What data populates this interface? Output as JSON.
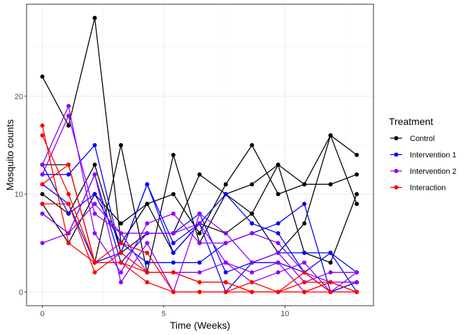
{
  "chart_data": {
    "type": "line",
    "xlabel": "Time (Weeks)",
    "ylabel": "Mosquito counts",
    "xlim": [
      -0.65,
      13.65
    ],
    "ylim": [
      -1.4,
      29.4
    ],
    "x_ticks": [
      0,
      5,
      10
    ],
    "x_tick_labels": [
      "0",
      "5",
      "10"
    ],
    "y_ticks": [
      0,
      10,
      20
    ],
    "y_tick_labels": [
      "0",
      "10",
      "20"
    ],
    "grid": true,
    "legend": {
      "title": "Treatment",
      "position": "right",
      "entries": [
        {
          "label": "Control",
          "color": "#000000"
        },
        {
          "label": "Intervention 1",
          "color": "#0000FF"
        },
        {
          "label": "Intervention 2",
          "color": "#8B00FF"
        },
        {
          "label": "Interaction",
          "color": "#FF0000"
        }
      ]
    },
    "x": [
      0,
      1.08,
      2.16,
      3.24,
      4.32,
      5.4,
      6.48,
      7.56,
      8.64,
      9.72,
      10.8,
      11.88,
      12.96
    ],
    "series": [
      {
        "treatment": "Control",
        "color": "#000000",
        "values": [
          22,
          17,
          28,
          5,
          9,
          10,
          6,
          11,
          15,
          10,
          11,
          16,
          14
        ]
      },
      {
        "treatment": "Control",
        "color": "#000000",
        "values": [
          13,
          13,
          3,
          15,
          2,
          14,
          5,
          10,
          8,
          13,
          11,
          11,
          12
        ]
      },
      {
        "treatment": "Control",
        "color": "#000000",
        "values": [
          10,
          8,
          13,
          4,
          6,
          6,
          12,
          10,
          11,
          13,
          4,
          3,
          10
        ]
      },
      {
        "treatment": "Control",
        "color": "#000000",
        "values": [
          9,
          5,
          10,
          7,
          9,
          4,
          7,
          6,
          8,
          4,
          7,
          16,
          9
        ]
      },
      {
        "treatment": "Intervention 1",
        "color": "#0000FF",
        "values": [
          12,
          12,
          15,
          4,
          11,
          4,
          7,
          10,
          7,
          6,
          2,
          4,
          0
        ]
      },
      {
        "treatment": "Intervention 1",
        "color": "#0000FF",
        "values": [
          13,
          8,
          10,
          5,
          3,
          3,
          3,
          5,
          6,
          7,
          9,
          0,
          1
        ]
      },
      {
        "treatment": "Intervention 1",
        "color": "#0000FF",
        "values": [
          11,
          9,
          3,
          4,
          11,
          5,
          7,
          0,
          3,
          4,
          4,
          4,
          2
        ]
      },
      {
        "treatment": "Intervention 1",
        "color": "#0000FF",
        "values": [
          8,
          6,
          12,
          3,
          6,
          6,
          8,
          2,
          3,
          3,
          2,
          0,
          1
        ]
      },
      {
        "treatment": "Intervention 2",
        "color": "#8B00FF",
        "values": [
          13,
          19,
          6,
          2,
          7,
          8,
          5,
          5,
          6,
          5,
          2,
          1,
          1
        ]
      },
      {
        "treatment": "Intervention 2",
        "color": "#8B00FF",
        "values": [
          5,
          6,
          12,
          1,
          5,
          0,
          8,
          6,
          3,
          4,
          1,
          2,
          2
        ]
      },
      {
        "treatment": "Intervention 2",
        "color": "#8B00FF",
        "values": [
          12,
          18,
          8,
          6,
          2,
          2,
          2,
          3,
          1,
          2,
          3,
          0,
          2
        ]
      },
      {
        "treatment": "Intervention 2",
        "color": "#8B00FF",
        "values": [
          8,
          6,
          9,
          6,
          6,
          6,
          7,
          3,
          2,
          3,
          0,
          1,
          1
        ]
      },
      {
        "treatment": "Interaction",
        "color": "#FF0000",
        "values": [
          17,
          5,
          3,
          3,
          2,
          2,
          1,
          1,
          0,
          0,
          2,
          0,
          0
        ]
      },
      {
        "treatment": "Interaction",
        "color": "#FF0000",
        "values": [
          16,
          10,
          3,
          5,
          4,
          0,
          0,
          0,
          1,
          0,
          1,
          1,
          0
        ]
      },
      {
        "treatment": "Interaction",
        "color": "#FF0000",
        "values": [
          11,
          13,
          3,
          3,
          1,
          0,
          0,
          0,
          0,
          0,
          0,
          0,
          0
        ]
      },
      {
        "treatment": "Interaction",
        "color": "#FF0000",
        "values": [
          9,
          9,
          2,
          4,
          2,
          2,
          1,
          1,
          0,
          0,
          0,
          1,
          0
        ]
      }
    ]
  }
}
